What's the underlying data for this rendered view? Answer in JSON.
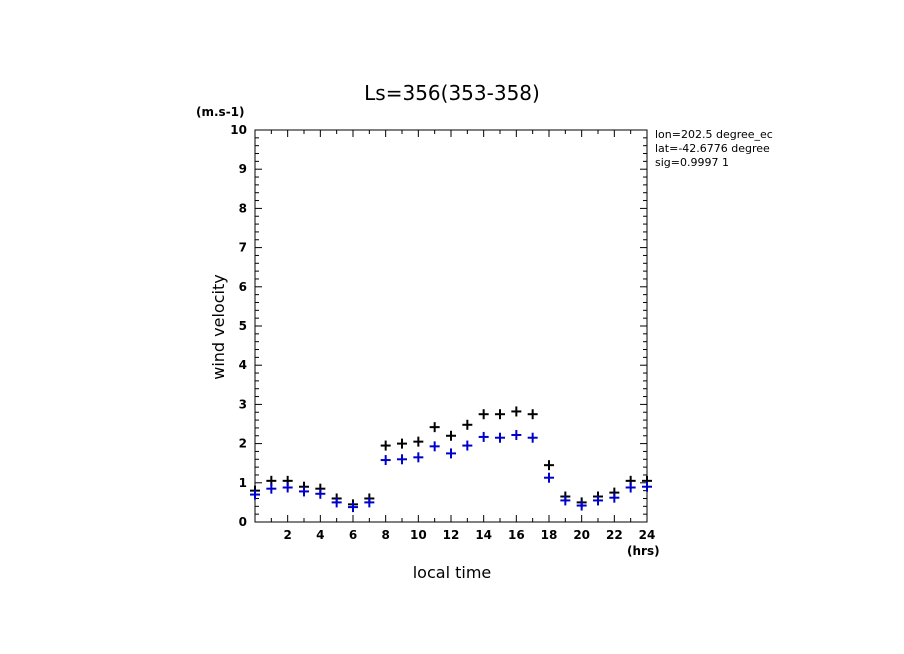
{
  "chart_data": {
    "type": "scatter",
    "title": "Ls=356(353-358)",
    "xlabel": "local time",
    "ylabel": "wind velocity",
    "x_unit": "(hrs)",
    "y_unit": "(m.s-1)",
    "xlim": [
      0,
      24
    ],
    "ylim": [
      0,
      10
    ],
    "x_ticks": [
      "2",
      "4",
      "6",
      "8",
      "10",
      "12",
      "14",
      "16",
      "18",
      "20",
      "22",
      "24"
    ],
    "y_ticks": [
      "0",
      "1",
      "2",
      "3",
      "4",
      "5",
      "6",
      "7",
      "8",
      "9",
      "10"
    ],
    "grid": false,
    "info": [
      "lon=202.5 degree_ec",
      "lat=-42.6776 degree",
      "sig=0.9997 1"
    ],
    "series": [
      {
        "color": "#000000",
        "x": [
          0,
          1,
          2,
          3,
          4,
          5,
          6,
          7,
          8,
          9,
          10,
          11,
          12,
          13,
          14,
          15,
          16,
          17,
          18,
          19,
          20,
          21,
          22,
          23,
          24
        ],
        "values": [
          0.8,
          1.05,
          1.05,
          0.9,
          0.85,
          0.6,
          0.45,
          0.6,
          1.95,
          2.0,
          2.05,
          2.42,
          2.2,
          2.48,
          2.75,
          2.75,
          2.82,
          2.75,
          1.45,
          0.65,
          0.5,
          0.65,
          0.75,
          1.05,
          1.05
        ]
      },
      {
        "color": "#0000cc",
        "x": [
          0,
          1,
          2,
          3,
          4,
          5,
          6,
          7,
          8,
          9,
          10,
          11,
          12,
          13,
          14,
          15,
          16,
          17,
          18,
          19,
          20,
          21,
          22,
          23,
          24
        ],
        "values": [
          0.7,
          0.85,
          0.88,
          0.78,
          0.72,
          0.5,
          0.38,
          0.5,
          1.58,
          1.6,
          1.65,
          1.93,
          1.75,
          1.95,
          2.17,
          2.15,
          2.22,
          2.15,
          1.13,
          0.55,
          0.42,
          0.55,
          0.62,
          0.88,
          0.9
        ]
      }
    ]
  }
}
